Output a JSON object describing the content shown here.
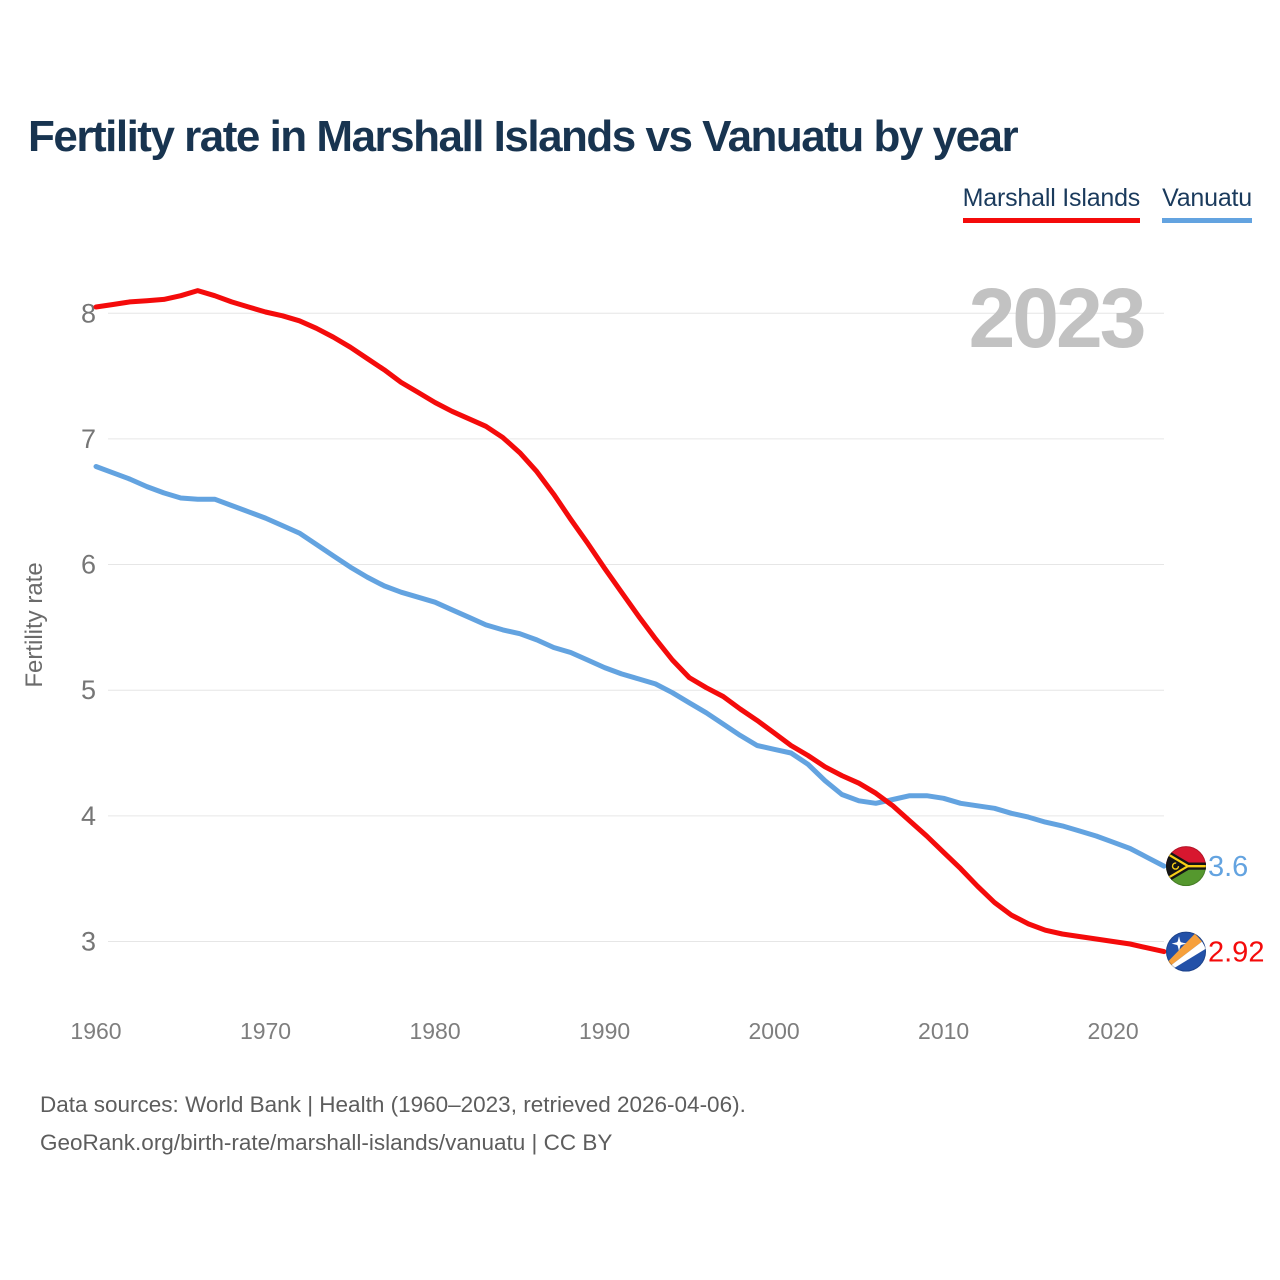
{
  "title": "Fertility rate in Marshall Islands vs Vanuatu by year",
  "watermark": "2023",
  "legend": {
    "items": [
      {
        "label": "Marshall Islands",
        "color": "#f40b0b"
      },
      {
        "label": "Vanuatu",
        "color": "#63a3e0"
      }
    ]
  },
  "footer": {
    "line1": "Data sources: World Bank | Health (1960–2023, retrieved 2026-04-06).",
    "line2": "GeoRank.org/birth-rate/marshall-islands/vanuatu | CC BY"
  },
  "chart_data": {
    "type": "line",
    "title": "Fertility rate in Marshall Islands vs Vanuatu by year",
    "xlabel": "",
    "ylabel": "Fertility rate",
    "x_start": 1960,
    "x_end": 2023,
    "x_ticks": [
      1960,
      1970,
      1980,
      1990,
      2000,
      2010,
      2020
    ],
    "y_ticks": [
      8,
      7,
      6,
      5,
      4,
      3
    ],
    "ylim": [
      2.75,
      8.4
    ],
    "grid": "horizontal",
    "legend_position": "top-right",
    "series": [
      {
        "name": "Marshall Islands",
        "color": "#f40b0b",
        "end_label": "2.92",
        "flag": "marshall-islands",
        "values": [
          8.05,
          8.07,
          8.09,
          8.1,
          8.11,
          8.14,
          8.18,
          8.14,
          8.09,
          8.05,
          8.01,
          7.98,
          7.94,
          7.88,
          7.81,
          7.73,
          7.64,
          7.55,
          7.45,
          7.37,
          7.29,
          7.22,
          7.16,
          7.1,
          7.01,
          6.89,
          6.74,
          6.56,
          6.36,
          6.17,
          5.97,
          5.78,
          5.59,
          5.41,
          5.24,
          5.1,
          5.02,
          4.95,
          4.85,
          4.76,
          4.66,
          4.56,
          4.48,
          4.39,
          4.32,
          4.26,
          4.18,
          4.08,
          3.96,
          3.84,
          3.71,
          3.58,
          3.44,
          3.31,
          3.21,
          3.14,
          3.09,
          3.06,
          3.04,
          3.02,
          3.0,
          2.98,
          2.95,
          2.92
        ]
      },
      {
        "name": "Vanuatu",
        "color": "#63a3e0",
        "end_label": "3.6",
        "flag": "vanuatu",
        "values": [
          6.78,
          6.73,
          6.68,
          6.62,
          6.57,
          6.53,
          6.52,
          6.52,
          6.47,
          6.42,
          6.37,
          6.31,
          6.25,
          6.16,
          6.07,
          5.98,
          5.9,
          5.83,
          5.78,
          5.74,
          5.7,
          5.64,
          5.58,
          5.52,
          5.48,
          5.45,
          5.4,
          5.34,
          5.3,
          5.24,
          5.18,
          5.13,
          5.09,
          5.05,
          4.98,
          4.9,
          4.82,
          4.73,
          4.64,
          4.56,
          4.53,
          4.5,
          4.41,
          4.28,
          4.17,
          4.12,
          4.1,
          4.13,
          4.16,
          4.16,
          4.14,
          4.1,
          4.08,
          4.06,
          4.02,
          3.99,
          3.95,
          3.92,
          3.88,
          3.84,
          3.79,
          3.74,
          3.67,
          3.6
        ]
      }
    ]
  }
}
